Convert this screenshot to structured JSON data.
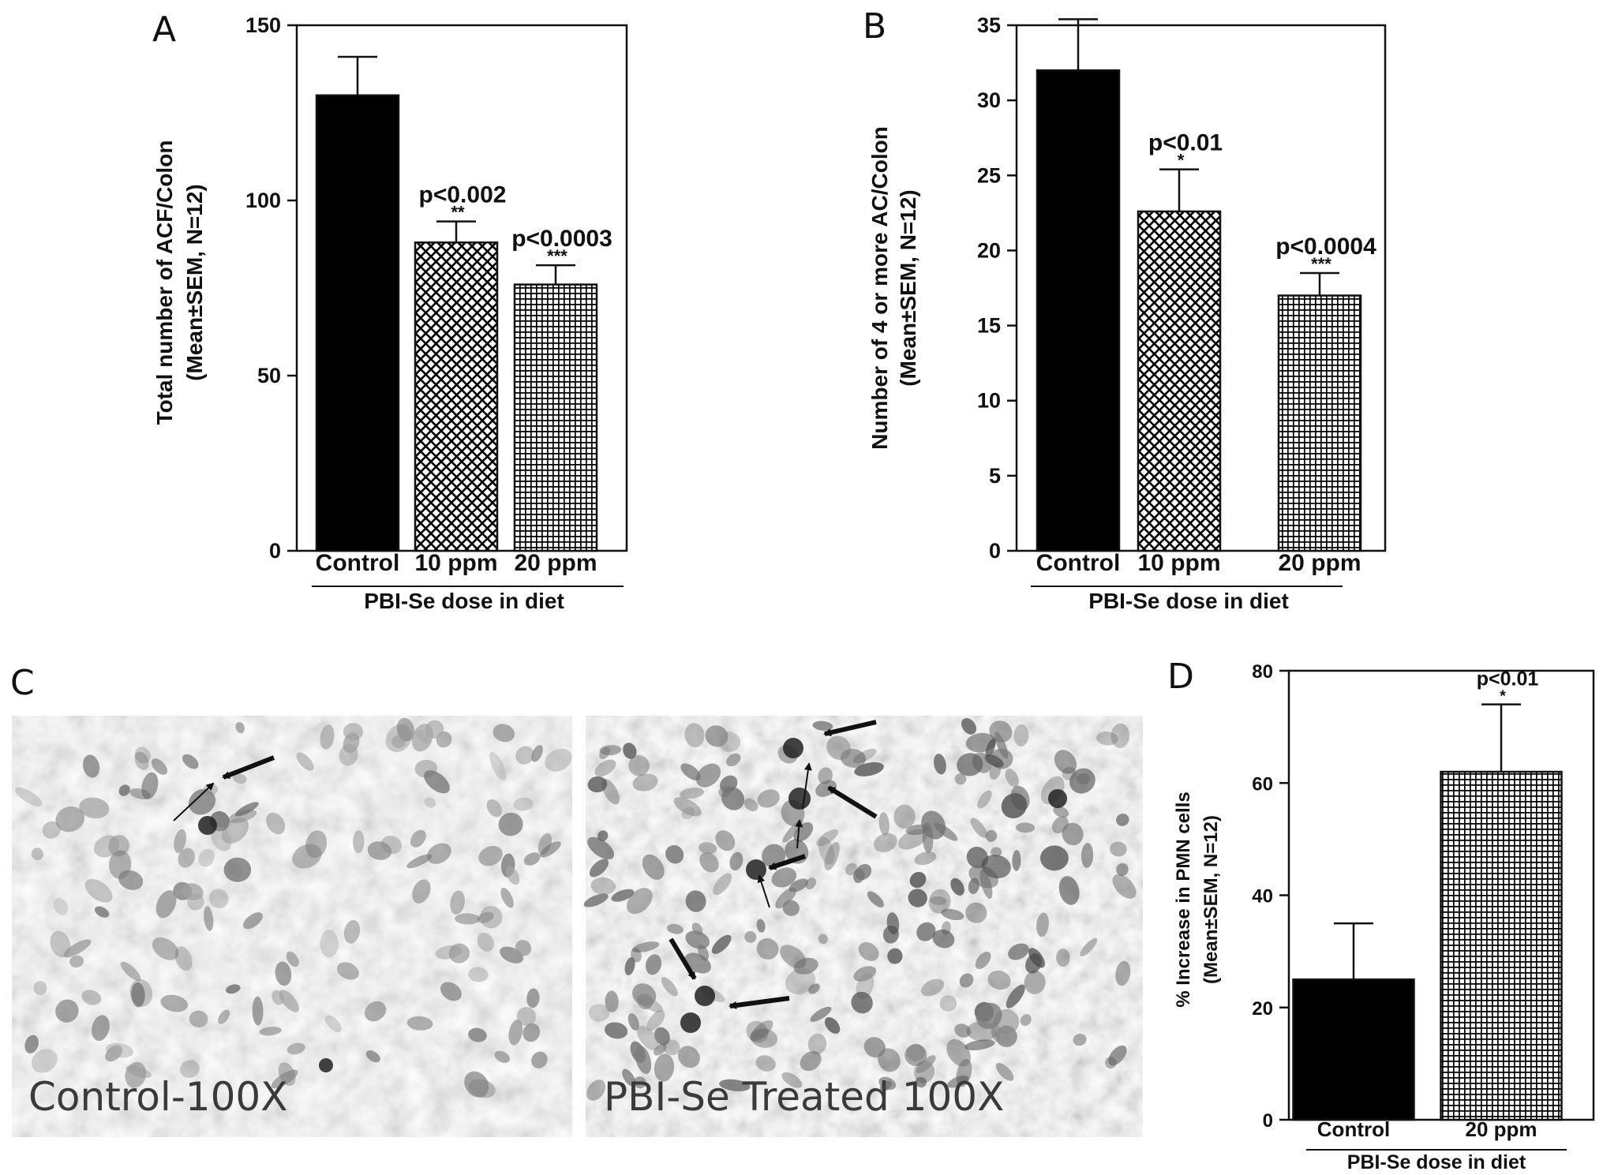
{
  "panels": {
    "a": "A",
    "b": "B",
    "c": "C",
    "d": "D"
  },
  "micrographs": {
    "left_label": "Control-100X",
    "right_label": "PBI-Se Treated 100X"
  },
  "colors": {
    "control": "#000000",
    "ten_ppm_pattern": "crosshatch",
    "twenty_ppm_pattern": "grid",
    "background_micrograph": "#b8b8b8"
  },
  "chart_data": [
    {
      "id": "A",
      "type": "bar",
      "categories": [
        "Control",
        "10 ppm",
        "20 ppm"
      ],
      "values": [
        130,
        88,
        76
      ],
      "errors": [
        11,
        6,
        5.5
      ],
      "patterns": [
        "solid",
        "crosshatch",
        "grid"
      ],
      "annotations": [
        {
          "pval": "",
          "stars": ""
        },
        {
          "pval": "p<0.002",
          "stars": "**"
        },
        {
          "pval": "p<0.0003",
          "stars": "***"
        }
      ],
      "ylim": [
        0,
        150
      ],
      "yticks": [
        0,
        50,
        100,
        150
      ],
      "ylabel_line1": "Total number of ACF/Colon",
      "ylabel_line2": "(Mean±SEM, N=12)",
      "xlabel": "PBI-Se dose in diet"
    },
    {
      "id": "B",
      "type": "bar",
      "categories": [
        "Control",
        "10 ppm",
        "20 ppm"
      ],
      "values": [
        32,
        22.6,
        17
      ],
      "errors": [
        3.4,
        2.8,
        1.5
      ],
      "patterns": [
        "solid",
        "crosshatch",
        "grid"
      ],
      "annotations": [
        {
          "pval": "",
          "stars": ""
        },
        {
          "pval": "p<0.01",
          "stars": "*"
        },
        {
          "pval": "p<0.0004",
          "stars": "***"
        }
      ],
      "ylim": [
        0,
        35
      ],
      "yticks": [
        0,
        5,
        10,
        15,
        20,
        25,
        30,
        35
      ],
      "ylabel_line1": "Number of 4 or more AC/Colon",
      "ylabel_line2": "(Mean±SEM, N=12)",
      "xlabel": "PBI-Se dose in diet"
    },
    {
      "id": "D",
      "type": "bar",
      "categories": [
        "Control",
        "20 ppm"
      ],
      "values": [
        25,
        62
      ],
      "errors": [
        10,
        12
      ],
      "patterns": [
        "solid",
        "grid"
      ],
      "annotations": [
        {
          "pval": "",
          "stars": ""
        },
        {
          "pval": "p<0.01",
          "stars": "*"
        }
      ],
      "ylim": [
        0,
        80
      ],
      "yticks": [
        0,
        20,
        40,
        60,
        80
      ],
      "ylabel_line1": "% Increase in PMN cells",
      "ylabel_line2": "(Mean±SEM, N=12)",
      "xlabel": "PBI-Se dose in diet"
    }
  ]
}
